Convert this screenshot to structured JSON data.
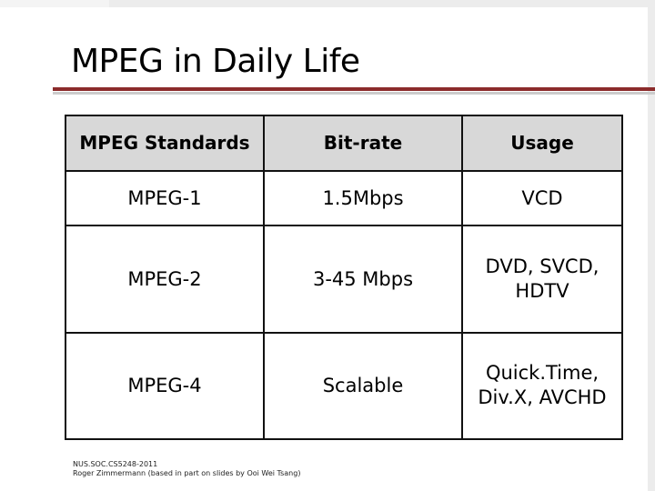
{
  "slide": {
    "title": "MPEG in Daily Life"
  },
  "table": {
    "headers": [
      "MPEG Standards",
      "Bit-rate",
      "Usage"
    ],
    "rows": [
      [
        "MPEG-1",
        "1.5Mbps",
        "VCD"
      ],
      [
        "MPEG-2",
        "3-45 Mbps",
        "DVD, SVCD, HDTV"
      ],
      [
        "MPEG-4",
        "Scalable",
        "Quick.Time, Div.X, AVCHD"
      ]
    ]
  },
  "footer": {
    "line1": "NUS.SOC.CS5248-2011",
    "line2": "Roger Zimmermann (based in part on slides by Ooi Wei Tsang)"
  },
  "colors": {
    "title_rule": "#8b2b2b",
    "header_fill": "#d8d8d8",
    "frame": "#ececec"
  }
}
